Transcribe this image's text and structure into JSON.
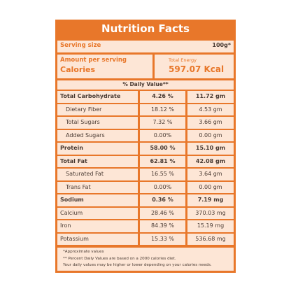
{
  "header": {
    "title": "Nutrition Facts"
  },
  "serving": {
    "label": "Serving size",
    "value": "100g*"
  },
  "calories": {
    "label_top": "Amount per serving",
    "label": "Calories",
    "energy_label": "Total Energy",
    "energy_value": "597.07 Kcal"
  },
  "daily_value_heading": "% Daily Value**",
  "table": {
    "rows": [
      {
        "name": "Total Carbohydrate",
        "daily_value": "4.26 %",
        "amount": "11.72 gm",
        "bold": true,
        "indent": false
      },
      {
        "name": "Dietary Fiber",
        "daily_value": "18.12 %",
        "amount": "4.53 gm",
        "bold": false,
        "indent": true
      },
      {
        "name": "Total Sugars",
        "daily_value": "7.32 %",
        "amount": "3.66 gm",
        "bold": false,
        "indent": true
      },
      {
        "name": "Added Sugars",
        "daily_value": "0.00%",
        "amount": "0.00 gm",
        "bold": false,
        "indent": true
      },
      {
        "name": "Protein",
        "daily_value": "58.00 %",
        "amount": "15.10 gm",
        "bold": true,
        "indent": false
      },
      {
        "name": "Total Fat",
        "daily_value": "62.81 %",
        "amount": "42.08 gm",
        "bold": true,
        "indent": false
      },
      {
        "name": "Saturated Fat",
        "daily_value": "16.55 %",
        "amount": "3.64 gm",
        "bold": false,
        "indent": true
      },
      {
        "name": "Trans Fat",
        "daily_value": "0.00%",
        "amount": "0.00 gm",
        "bold": false,
        "indent": true
      },
      {
        "name": "Sodium",
        "daily_value": "0.36 %",
        "amount": "7.19 mg",
        "bold": true,
        "indent": false
      },
      {
        "name": "Calcium",
        "daily_value": "28.46 %",
        "amount": "370.03 mg",
        "bold": false,
        "indent": false
      },
      {
        "name": "Iron",
        "daily_value": "84.39 %",
        "amount": "15.19 mg",
        "bold": false,
        "indent": false
      },
      {
        "name": "Potassium",
        "daily_value": "15.33 %",
        "amount": "536.68 mg",
        "bold": false,
        "indent": false
      }
    ]
  },
  "footnotes": [
    "*Approximate values",
    "** Percent Daily Values are based on a 2000 calories diet.",
    "Your daily values may be higher or lower depending on your calories needs."
  ]
}
